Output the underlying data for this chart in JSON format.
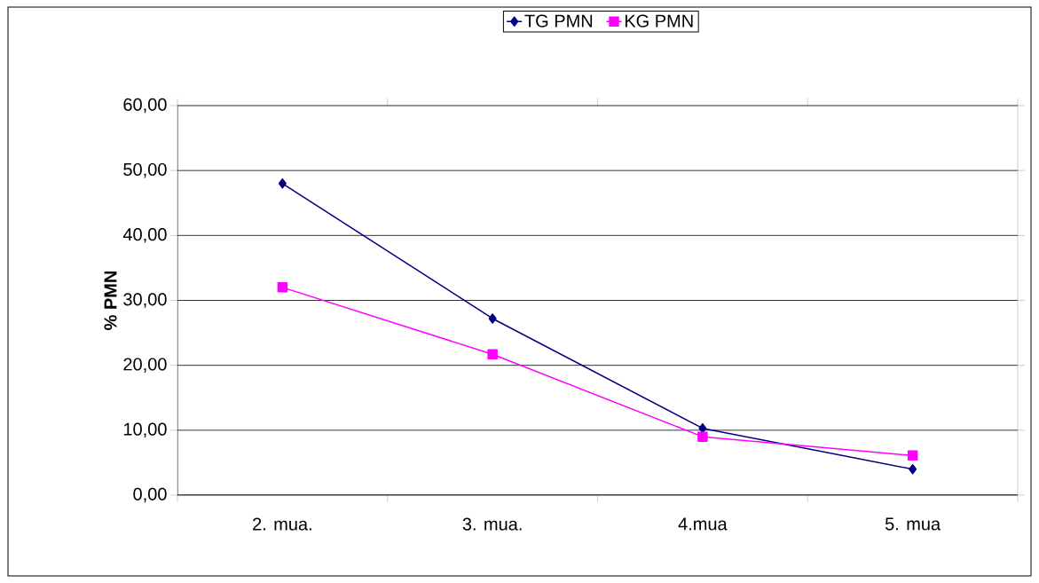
{
  "chart_data": {
    "type": "line",
    "ylabel": "% PMN",
    "categories": [
      "2. mua.",
      "3. mua.",
      "4.mua",
      "5. mua"
    ],
    "series": [
      {
        "name": "TG PMN",
        "color": "#000080",
        "marker": "diamond",
        "values": [
          48.0,
          27.2,
          10.3,
          4.0
        ]
      },
      {
        "name": "KG PMN",
        "color": "#ff00ff",
        "marker": "square",
        "values": [
          32.0,
          21.7,
          9.0,
          6.1
        ]
      }
    ],
    "ylim": [
      0,
      60
    ],
    "yticks": [
      {
        "value": 0,
        "label": "0,00"
      },
      {
        "value": 10,
        "label": "10,00"
      },
      {
        "value": 20,
        "label": "20,00"
      },
      {
        "value": 30,
        "label": "30,00"
      },
      {
        "value": 40,
        "label": "40,00"
      },
      {
        "value": 50,
        "label": "50,00"
      },
      {
        "value": 60,
        "label": "60,00"
      }
    ],
    "grid": "y",
    "legend": "top",
    "line_style": "solid"
  }
}
